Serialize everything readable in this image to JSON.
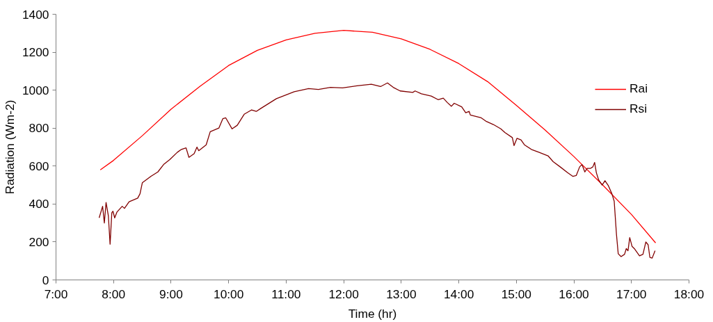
{
  "chart_data": {
    "type": "line",
    "xlabel": "Time (hr)",
    "ylabel": "Radiation (Wm-2)",
    "xlim": [
      7,
      18
    ],
    "ylim": [
      0,
      1400
    ],
    "xticks": [
      {
        "value": 7,
        "label": "7:00"
      },
      {
        "value": 8,
        "label": "8:00"
      },
      {
        "value": 9,
        "label": "9:00"
      },
      {
        "value": 10,
        "label": "10:00"
      },
      {
        "value": 11,
        "label": "11:00"
      },
      {
        "value": 12,
        "label": "12:00"
      },
      {
        "value": 13,
        "label": "13:00"
      },
      {
        "value": 14,
        "label": "14:00"
      },
      {
        "value": 15,
        "label": "15:00"
      },
      {
        "value": 16,
        "label": "16:00"
      },
      {
        "value": 17,
        "label": "17:00"
      },
      {
        "value": 18,
        "label": "18:00"
      }
    ],
    "yticks": [
      0,
      200,
      400,
      600,
      800,
      1000,
      1200,
      1400
    ],
    "grid": false,
    "legend": "right",
    "marker": "none",
    "line_style": "solid",
    "series": [
      {
        "name": "Rai",
        "color": "#ff0000",
        "x": [
          7.77,
          8.0,
          8.5,
          9.0,
          9.5,
          10.0,
          10.5,
          11.0,
          11.5,
          12.0,
          12.5,
          13.0,
          13.5,
          14.0,
          14.5,
          15.0,
          15.5,
          16.0,
          16.5,
          17.0,
          17.42
        ],
        "values": [
          580,
          630,
          760,
          900,
          1020,
          1130,
          1210,
          1265,
          1300,
          1315,
          1305,
          1270,
          1215,
          1140,
          1045,
          920,
          790,
          650,
          500,
          345,
          195
        ]
      },
      {
        "name": "Rsi",
        "color": "#800000",
        "x": [
          7.75,
          7.81,
          7.84,
          7.87,
          7.91,
          7.94,
          7.97,
          7.99,
          8.02,
          8.06,
          8.15,
          8.19,
          8.27,
          8.42,
          8.46,
          8.5,
          8.65,
          8.77,
          8.87,
          8.98,
          9.11,
          9.18,
          9.26,
          9.31,
          9.4,
          9.45,
          9.48,
          9.61,
          9.68,
          9.83,
          9.9,
          9.95,
          10.06,
          10.15,
          10.27,
          10.4,
          10.48,
          10.56,
          10.83,
          11.14,
          11.39,
          11.56,
          11.77,
          11.98,
          12.23,
          12.48,
          12.64,
          12.76,
          12.86,
          12.98,
          13.2,
          13.24,
          13.35,
          13.52,
          13.64,
          13.73,
          13.8,
          13.87,
          13.92,
          14.05,
          14.12,
          14.18,
          14.2,
          14.39,
          14.48,
          14.6,
          14.73,
          14.8,
          14.93,
          14.96,
          15.01,
          15.08,
          15.14,
          15.26,
          15.39,
          15.55,
          15.64,
          15.76,
          15.89,
          15.98,
          16.04,
          16.1,
          16.14,
          16.19,
          16.23,
          16.29,
          16.33,
          16.36,
          16.39,
          16.43,
          16.49,
          16.54,
          16.6,
          16.66,
          16.7,
          16.74,
          16.77,
          16.82,
          16.88,
          16.91,
          16.94,
          16.97,
          17.01,
          17.05,
          17.14,
          17.2,
          17.25,
          17.29,
          17.32,
          17.36,
          17.41
        ],
        "values": [
          327,
          388,
          300,
          408,
          338,
          188,
          354,
          362,
          327,
          358,
          388,
          377,
          412,
          431,
          454,
          512,
          546,
          569,
          608,
          635,
          673,
          688,
          696,
          646,
          665,
          700,
          681,
          712,
          781,
          800,
          850,
          854,
          796,
          815,
          873,
          896,
          888,
          904,
          955,
          992,
          1008,
          1004,
          1015,
          1012,
          1023,
          1031,
          1019,
          1038,
          1015,
          996,
          988,
          996,
          981,
          969,
          950,
          958,
          935,
          915,
          931,
          912,
          881,
          888,
          869,
          854,
          835,
          819,
          796,
          777,
          750,
          708,
          746,
          738,
          712,
          688,
          673,
          654,
          623,
          596,
          565,
          546,
          550,
          596,
          608,
          569,
          588,
          588,
          596,
          619,
          565,
          527,
          500,
          523,
          496,
          454,
          415,
          238,
          138,
          123,
          135,
          165,
          154,
          223,
          177,
          165,
          127,
          135,
          200,
          185,
          119,
          115,
          154
        ]
      }
    ]
  }
}
